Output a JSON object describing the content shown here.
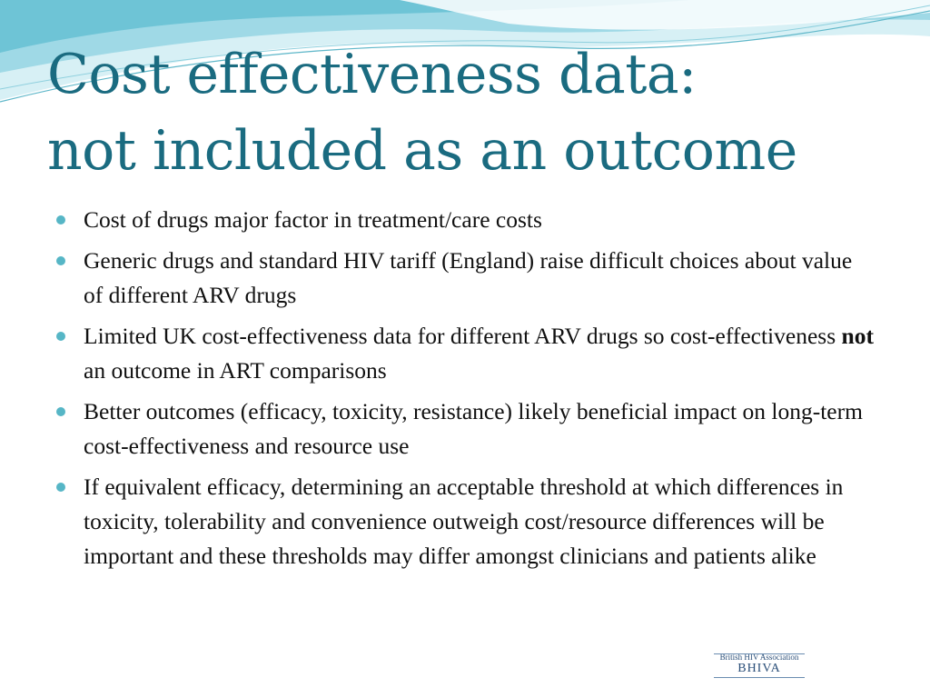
{
  "slide": {
    "title_lines": [
      "Cost effectiveness data:",
      "not included as an outcome"
    ],
    "bullets": [
      {
        "parts": [
          {
            "text": "Cost of drugs major factor in treatment/care costs",
            "bold": false
          }
        ]
      },
      {
        "parts": [
          {
            "text": "Generic drugs and standard HIV tariff (England) raise difficult choices about value of different ARV drugs",
            "bold": false
          }
        ]
      },
      {
        "parts": [
          {
            "text": "Limited UK cost-effectiveness data for different ARV drugs so cost-effectiveness ",
            "bold": false
          },
          {
            "text": "not",
            "bold": true
          },
          {
            "text": " an outcome in ART comparisons",
            "bold": false
          }
        ]
      },
      {
        "parts": [
          {
            "text": "Better outcomes (efficacy, toxicity, resistance) likely beneficial impact on long-term cost-effectiveness and resource use",
            "bold": false
          }
        ]
      },
      {
        "parts": [
          {
            "text": "If equivalent efficacy, determining an acceptable threshold at which differences in toxicity, tolerability and convenience outweigh cost/resource differences will be important and these thresholds may differ amongst clinicians and patients alike",
            "bold": false
          }
        ]
      }
    ]
  },
  "logo": {
    "name": "British HIV Association",
    "abbr": "BHIVA"
  },
  "colors": {
    "title": "#1a6b80",
    "bullet_marker": "#56b6c6",
    "wave_light": "#bfe6ef",
    "wave_mid": "#7cc8d8",
    "logo": "#2a4e78"
  }
}
